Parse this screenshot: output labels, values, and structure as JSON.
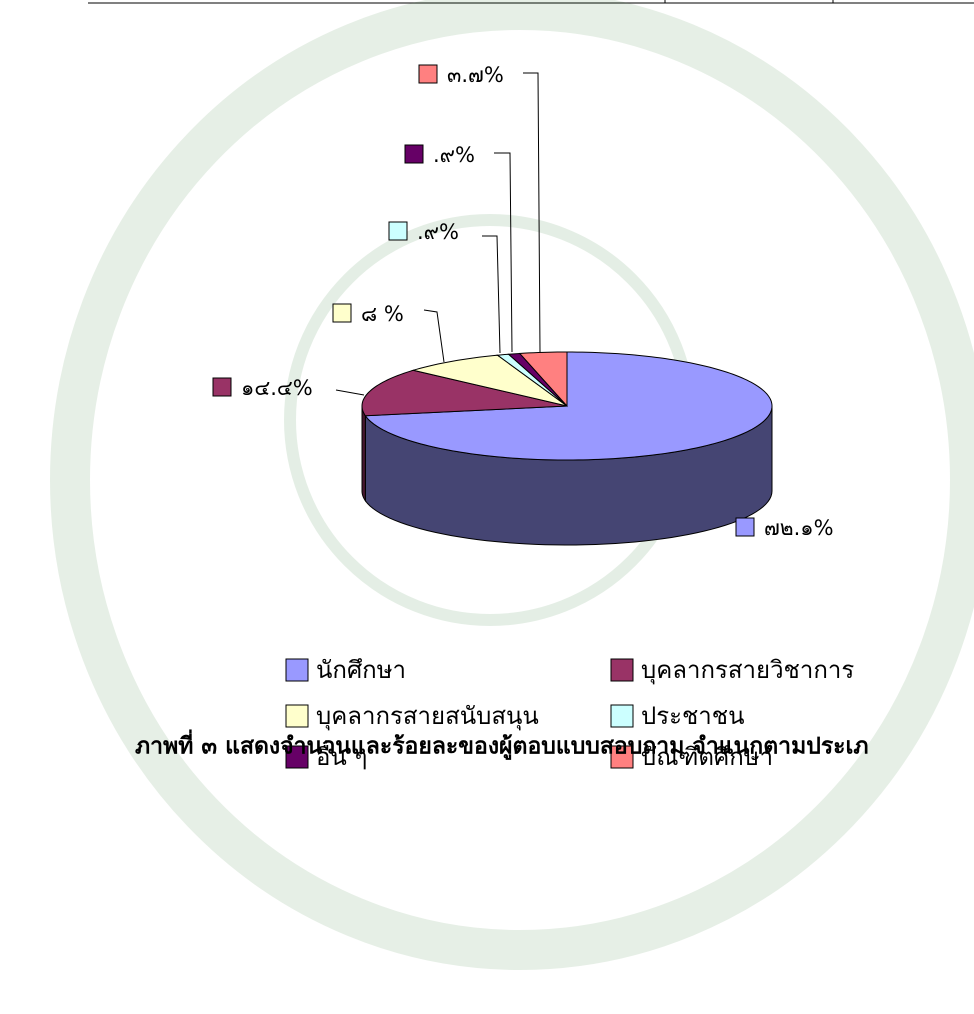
{
  "chart_data": {
    "type": "pie3d",
    "title": "ภาพที่ ๓  แสดงจำนวนและร้อยละของผู้ตอบแบบสอบถาม จำแนกตามประเภ",
    "categories": [
      "นักศึกษา",
      "บุคลากรสายวิชาการ",
      "บุคลากรสายสนับสนุน",
      "ประชาชน",
      "อื่น ๆ",
      "บัณฑิตศึกษา"
    ],
    "values": [
      72.1,
      14.4,
      8,
      0.9,
      0.9,
      3.7
    ],
    "value_labels": [
      "๗๒.๑%",
      "๑๔.๔%",
      "๘ %",
      ".๙%",
      ".๙%",
      "๓.๗%"
    ],
    "colors": [
      "#9999ff",
      "#993366",
      "#ffffcc",
      "#ccffff",
      "#660066",
      "#ff8080"
    ],
    "legend": "bottom"
  }
}
